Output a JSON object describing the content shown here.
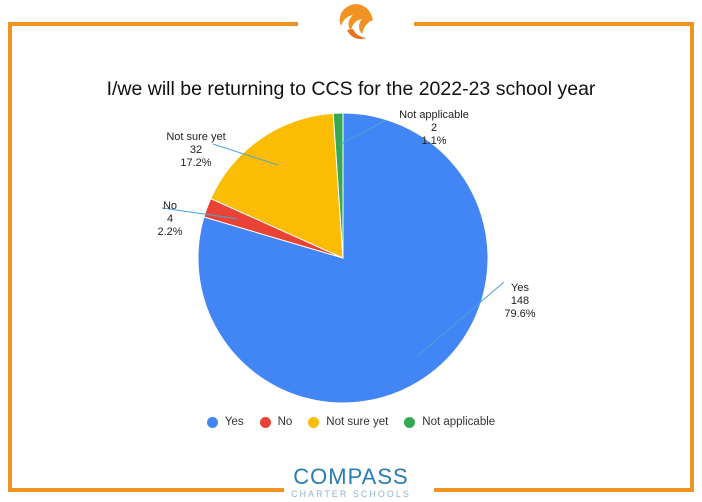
{
  "brand": {
    "name": "COMPASS",
    "sub": "CHARTER SCHOOLS",
    "accent_color": "#f29222",
    "name_color": "#2a7bb5",
    "logo_icon": "swirl-logo-icon"
  },
  "chart_data": {
    "type": "pie",
    "title": "I/we will be returning to CCS for the 2022-23 school year",
    "legend_position": "bottom",
    "start_angle_deg": 0,
    "slices": [
      {
        "label": "Yes",
        "value": 148,
        "percent": "79.6%",
        "color": "#4285f4"
      },
      {
        "label": "No",
        "value": 4,
        "percent": "2.2%",
        "color": "#ea4335"
      },
      {
        "label": "Not sure yet",
        "value": 32,
        "percent": "17.2%",
        "color": "#fbbc04"
      },
      {
        "label": "Not applicable",
        "value": 2,
        "percent": "1.1%",
        "color": "#34a853"
      }
    ]
  }
}
